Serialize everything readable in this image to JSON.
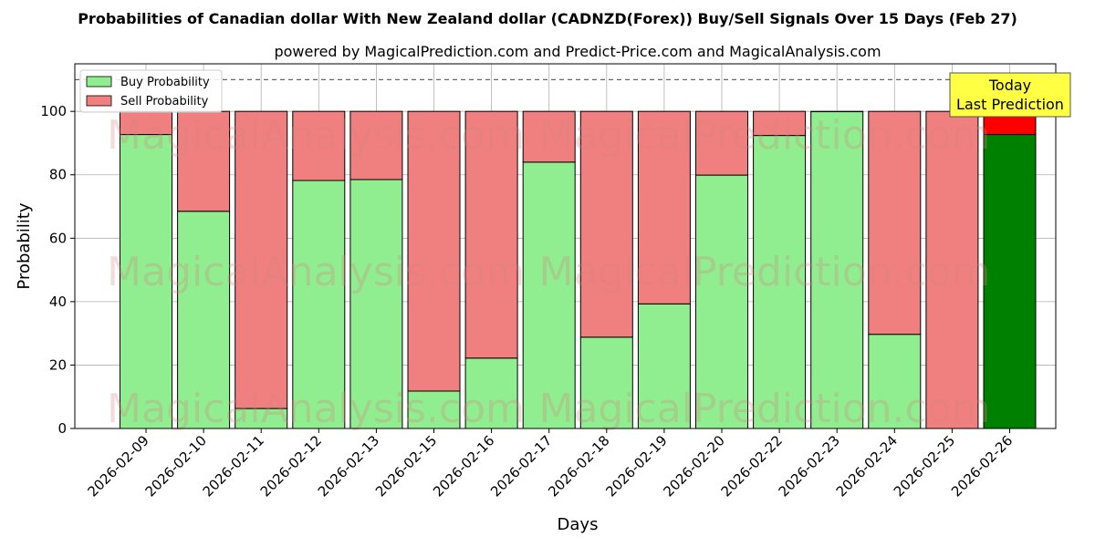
{
  "chart_data": {
    "type": "bar",
    "stacked": true,
    "title": "Probabilities of Canadian dollar With New Zealand dollar (CADNZD(Forex)) Buy/Sell Signals Over 15 Days (Feb 27)",
    "subtitle": "powered by MagicalPrediction.com and Predict-Price.com and MagicalAnalysis.com",
    "xlabel": "Days",
    "ylabel": "Probability",
    "ylim": [
      0,
      115
    ],
    "yticks": [
      0,
      20,
      40,
      60,
      80,
      100
    ],
    "reference_line": 110,
    "grid": true,
    "legend_position": "top-left",
    "categories": [
      "2026-02-09",
      "2026-02-10",
      "2026-02-11",
      "2026-02-12",
      "2026-02-13",
      "2026-02-15",
      "2026-02-16",
      "2026-02-17",
      "2026-02-18",
      "2026-02-19",
      "2026-02-20",
      "2026-02-22",
      "2026-02-23",
      "2026-02-24",
      "2026-02-25",
      "2026-02-26"
    ],
    "series": [
      {
        "name": "Buy Probability",
        "color": "#90ee90",
        "highlight_color": "#008000",
        "values": [
          92.7,
          68.5,
          6.3,
          78.2,
          78.5,
          11.8,
          22.2,
          84.0,
          28.8,
          39.3,
          79.9,
          92.4,
          99.9,
          29.7,
          0.0,
          92.7
        ]
      },
      {
        "name": "Sell Probability",
        "color": "#f08080",
        "highlight_color": "#ff0000",
        "values": [
          7.3,
          31.5,
          93.7,
          21.8,
          21.5,
          88.2,
          77.8,
          16.0,
          71.2,
          60.7,
          20.1,
          7.6,
          0.1,
          70.3,
          100.0,
          7.3
        ]
      }
    ],
    "highlight_index": 15,
    "annotation": {
      "line1": "Today",
      "line2": "Last Prediction",
      "color": "#ffff44"
    },
    "watermarks": [
      "MagicalAnalysis.com",
      "MagicalPrediction.com"
    ]
  }
}
